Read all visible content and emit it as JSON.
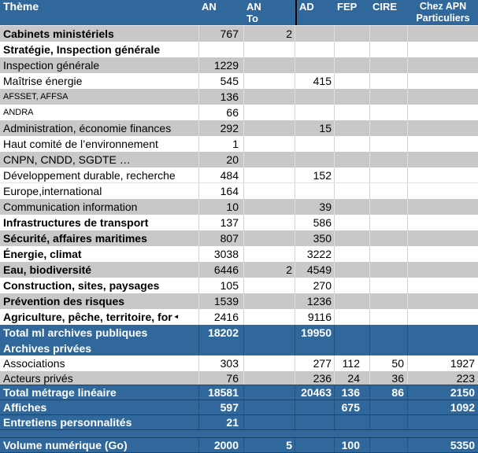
{
  "table": {
    "columns": [
      {
        "key": "theme",
        "lines": [
          "Thème"
        ]
      },
      {
        "key": "an",
        "lines": [
          "AN"
        ]
      },
      {
        "key": "an_to",
        "lines": [
          "AN",
          "To"
        ]
      },
      {
        "key": "ad",
        "lines": [
          "AD"
        ]
      },
      {
        "key": "fep",
        "lines": [
          "FEP"
        ]
      },
      {
        "key": "cire",
        "lines": [
          "CIRE"
        ]
      },
      {
        "key": "apn",
        "lines": [
          "Chez APN",
          "Particuliers"
        ]
      }
    ],
    "rows": [
      {
        "label": "Cabinets ministériels",
        "an": "767",
        "an_to": "2",
        "ad": "",
        "fep": "",
        "cire": "",
        "apn": "",
        "bg": "gray",
        "bold": true
      },
      {
        "label": "Stratégie, Inspection générale",
        "an": "",
        "an_to": "",
        "ad": "",
        "fep": "",
        "cire": "",
        "apn": "",
        "bg": "white",
        "bold": true
      },
      {
        "label": "Inspection générale",
        "an": "1229",
        "an_to": "",
        "ad": "",
        "fep": "",
        "cire": "",
        "apn": "",
        "bg": "gray"
      },
      {
        "label": "Maîtrise énergie",
        "an": "545",
        "an_to": "",
        "ad": "415",
        "fep": "",
        "cire": "",
        "apn": "",
        "bg": "white"
      },
      {
        "label": "AFSSET, AFFSA",
        "an": "136",
        "an_to": "",
        "ad": "",
        "fep": "",
        "cire": "",
        "apn": "",
        "bg": "gray",
        "small": true
      },
      {
        "label": "ANDRA",
        "an": "66",
        "an_to": "",
        "ad": "",
        "fep": "",
        "cire": "",
        "apn": "",
        "bg": "white",
        "small": true
      },
      {
        "label": "Administration, économie finances",
        "an": "292",
        "an_to": "",
        "ad": "15",
        "fep": "",
        "cire": "",
        "apn": "",
        "bg": "gray"
      },
      {
        "label": "Haut comité de l’environnement",
        "an": "1",
        "an_to": "",
        "ad": "",
        "fep": "",
        "cire": "",
        "apn": "",
        "bg": "white"
      },
      {
        "label": "CNPN, CNDD, SGDTE …",
        "an": "20",
        "an_to": "",
        "ad": "",
        "fep": "",
        "cire": "",
        "apn": "",
        "bg": "gray"
      },
      {
        "label": "Développement durable, recherche",
        "an": "484",
        "an_to": "",
        "ad": "152",
        "fep": "",
        "cire": "",
        "apn": "",
        "bg": "white",
        "hairline": true
      },
      {
        "label": "Europe,international",
        "an": "164",
        "an_to": "",
        "ad": "",
        "fep": "",
        "cire": "",
        "apn": "",
        "bg": "white"
      },
      {
        "label": "Communication information",
        "an": "10",
        "an_to": "",
        "ad": "39",
        "fep": "",
        "cire": "",
        "apn": "",
        "bg": "gray"
      },
      {
        "label": "Infrastructures de transport",
        "an": "137",
        "an_to": "",
        "ad": "586",
        "fep": "",
        "cire": "",
        "apn": "",
        "bg": "white",
        "bold": true
      },
      {
        "label": "Sécurité, affaires maritimes",
        "an": "807",
        "an_to": "",
        "ad": "350",
        "fep": "",
        "cire": "",
        "apn": "",
        "bg": "gray",
        "bold": true
      },
      {
        "label": "Énergie, climat",
        "an": "3038",
        "an_to": "",
        "ad": "3222",
        "fep": "",
        "cire": "",
        "apn": "",
        "bg": "white",
        "bold": true
      },
      {
        "label": "Eau, biodiversité",
        "an": "6446",
        "an_to": "2",
        "ad": "4549",
        "fep": "",
        "cire": "",
        "apn": "",
        "bg": "gray",
        "bold": true
      },
      {
        "label": "Construction, sites, paysages",
        "an": "105",
        "an_to": "",
        "ad": "270",
        "fep": "",
        "cire": "",
        "apn": "",
        "bg": "white",
        "bold": true
      },
      {
        "label": "Prévention des risques",
        "an": "1539",
        "an_to": "",
        "ad": "1236",
        "fep": "",
        "cire": "",
        "apn": "",
        "bg": "gray",
        "bold": true
      },
      {
        "label": "Agriculture, pêche, territoire, for",
        "truncated": true,
        "an": "2416",
        "an_to": "",
        "ad": "9116",
        "fep": "",
        "cire": "",
        "apn": "",
        "bg": "white",
        "bold": true
      },
      {
        "label": "Total ml archives publiques",
        "an": "18202",
        "an_to": "",
        "ad": "19950",
        "fep": "",
        "cire": "",
        "apn": "",
        "bg": "blue",
        "bold": true
      },
      {
        "label": "Archives privées",
        "an": "",
        "an_to": "",
        "ad": "",
        "fep": "",
        "cire": "",
        "apn": "",
        "bg": "blue",
        "bold": true,
        "h": 19
      },
      {
        "label": "Associations",
        "an": "303",
        "an_to": "",
        "ad": "277",
        "fep": "112",
        "cire": "50",
        "apn": "1927",
        "bg": "white"
      },
      {
        "label": "Acteurs privés",
        "an": "76",
        "an_to": "",
        "ad": "236",
        "fep": "24",
        "cire": "36",
        "apn": "223",
        "bg": "gray",
        "h": 17
      },
      {
        "label": "Total métrage linéaire",
        "an": "18581",
        "an_to": "",
        "ad": "20463",
        "fep": "136",
        "cire": "86",
        "apn": "2150",
        "bg": "blue",
        "bold": true,
        "dark_top": true,
        "dark_bottom": true
      },
      {
        "label": "Affiches",
        "an": "597",
        "an_to": "",
        "ad": "",
        "fep": "675",
        "cire": "",
        "apn": "1092",
        "bg": "blue",
        "bold": true,
        "h": 19,
        "dark_bottom": true
      },
      {
        "label": "Entretiens personnalités",
        "an": "21",
        "an_to": "",
        "ad": "",
        "fep": "",
        "cire": "",
        "apn": "",
        "bg": "blue",
        "bold": true,
        "h": 19,
        "dark_bottom": true
      },
      {
        "spacer": true,
        "bg": "blue",
        "h": 10,
        "dark_bottom": true
      },
      {
        "label": "Volume numérique (Go)",
        "an": "2000",
        "an_to": "5",
        "ad": "",
        "fep": "100",
        "cire": "",
        "apn": "5350",
        "bg": "blue",
        "bold": true,
        "h": 19,
        "dark_bottom": true
      }
    ]
  },
  "icons": {
    "truncation_arrow": "◄"
  },
  "colors": {
    "header_bg": "#31689B",
    "total_row_bg": "#31689B",
    "gray_row_bg": "#C8C8C8",
    "white_row_bg": "#FFFFFF",
    "header_text": "#FFFFFF",
    "body_text": "#000000",
    "dark_separator": "#17456E",
    "header_divider_line": "#000000"
  }
}
